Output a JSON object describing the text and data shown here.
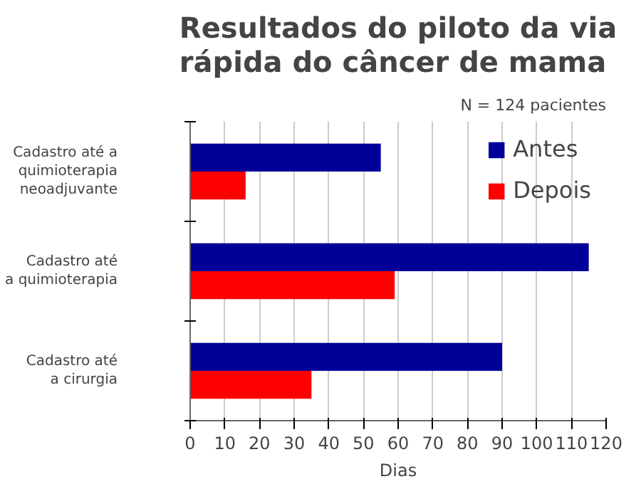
{
  "chart_data": {
    "type": "bar",
    "orientation": "horizontal",
    "title": "Resultados do piloto da via rápida do câncer de mama",
    "annotations": [
      "N = 124 pacientes"
    ],
    "xlabel": "Dias",
    "categories": [
      "Cadastro até a\nquimioterapia\nneoadjuvante",
      "Cadastro até\na quimioterapia",
      "Cadastro até\na cirurgia"
    ],
    "series": [
      {
        "name": "Antes",
        "color": "#000099",
        "values": [
          55,
          115,
          90
        ]
      },
      {
        "name": "Depois",
        "color": "#ff0000",
        "values": [
          16,
          59,
          35
        ]
      }
    ],
    "xlim": [
      0,
      120
    ],
    "xticks": [
      0,
      10,
      20,
      30,
      40,
      50,
      60,
      70,
      80,
      90,
      100,
      110,
      120
    ],
    "grid": "x",
    "legend": "top right"
  }
}
